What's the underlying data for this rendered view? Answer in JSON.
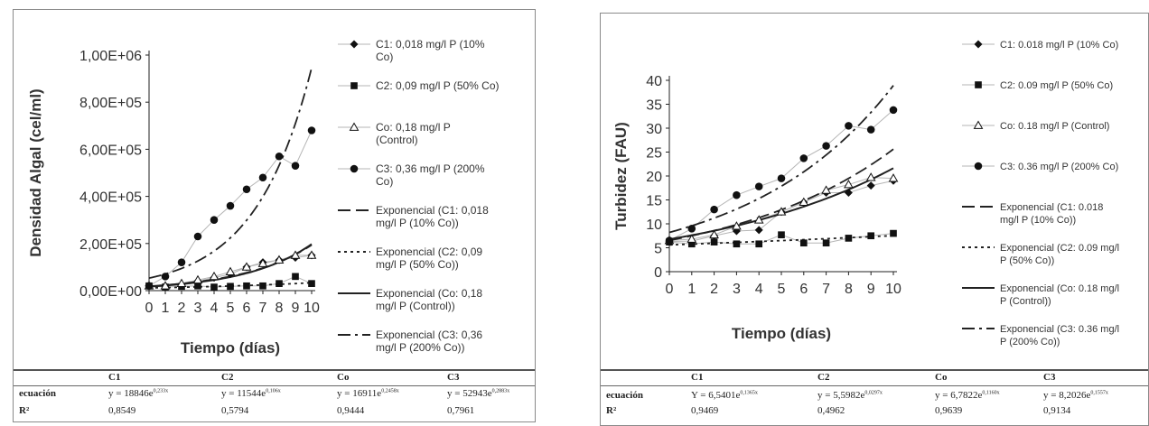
{
  "charts": [
    {
      "ylabel": "Densidad Algal (cel/ml)",
      "xlabel": "Tiempo (días)",
      "yticks": [
        "0,00E+00",
        "2,00E+05",
        "4,00E+05",
        "6,00E+05",
        "8,00E+05",
        "1,00E+06"
      ],
      "xticks": [
        "0",
        "1",
        "2",
        "3",
        "4",
        "5",
        "6",
        "7",
        "8",
        "9",
        "10"
      ],
      "legend": [
        "C1: 0,018 mg/l P (10% Co)",
        "C2: 0,09 mg/l P (50% Co)",
        "Co: 0,18 mg/l P (Control)",
        "C3: 0,36 mg/l P (200% Co)",
        "Exponencial (C1: 0,018 mg/l P (10% Co))",
        "Exponencial (C2: 0,09 mg/l P (50% Co))",
        "Exponencial (Co: 0,18 mg/l P (Control))",
        "Exponencial (C3: 0,36 mg/l P (200% Co))"
      ],
      "table": {
        "headers": [
          "C1",
          "C2",
          "Co",
          "C3"
        ],
        "row1_label": "ecuación",
        "equations": [
          {
            "base": "y = 18846e",
            "exp": "0,233x"
          },
          {
            "base": "y = 11544e",
            "exp": "0,106x"
          },
          {
            "base": "y = 16911e",
            "exp": "0,2458x"
          },
          {
            "base": "y = 52943e",
            "exp": "0,2883x"
          }
        ],
        "row2_label": "R²",
        "r2": [
          "0,8549",
          "0,5794",
          "0,9444",
          "0,7961"
        ]
      }
    },
    {
      "ylabel": "Turbidez (FAU)",
      "xlabel": "Tiempo (días)",
      "yticks": [
        "0",
        "5",
        "10",
        "15",
        "20",
        "25",
        "30",
        "35",
        "40"
      ],
      "xticks": [
        "0",
        "1",
        "2",
        "3",
        "4",
        "5",
        "6",
        "7",
        "8",
        "9",
        "10"
      ],
      "legend": [
        "C1: 0.018 mg/l P (10% Co)",
        "C2: 0.09 mg/l P (50% Co)",
        "Co: 0.18 mg/l P (Control)",
        "C3: 0.36 mg/l P (200% Co)",
        "Exponencial (C1: 0.018 mg/l P (10% Co))",
        "Exponencial (C2: 0.09 mg/l P (50% Co))",
        "Exponencial (Co: 0.18 mg/l P (Control))",
        "Exponencial (C3: 0.36 mg/l P (200% Co))"
      ],
      "table": {
        "headers": [
          "C1",
          "C2",
          "Co",
          "C3"
        ],
        "row1_label": "ecuación",
        "equations": [
          {
            "base": "Y = 6,5401e",
            "exp": "0,1365x"
          },
          {
            "base": "y = 5,5982e",
            "exp": "0,0297x"
          },
          {
            "base": "y = 6,7822e",
            "exp": "0,1160x"
          },
          {
            "base": "y = 8,2026e",
            "exp": "0,1557x"
          }
        ],
        "row2_label": "R²",
        "r2": [
          "0,9469",
          "0,4962",
          "0,9639",
          "0,9134"
        ]
      }
    }
  ],
  "chart_data": [
    {
      "type": "scatter",
      "x": [
        0,
        1,
        2,
        3,
        4,
        5,
        6,
        7,
        8,
        9,
        10
      ],
      "ylim": [
        0,
        1000000
      ],
      "xlim": [
        0,
        10
      ],
      "series": [
        {
          "name": "C1: 0,018 mg/l P (10% Co)",
          "marker": "diamond",
          "values": [
            20000,
            20000,
            25000,
            40000,
            55000,
            70000,
            100000,
            120000,
            130000,
            140000,
            150000
          ]
        },
        {
          "name": "C2: 0,09 mg/l P (50% Co)",
          "marker": "square",
          "values": [
            20000,
            15000,
            18000,
            20000,
            15000,
            18000,
            20000,
            20000,
            30000,
            60000,
            30000
          ]
        },
        {
          "name": "Co: 0,18 mg/l P (Control)",
          "marker": "triangle",
          "values": [
            20000,
            20000,
            30000,
            45000,
            60000,
            80000,
            100000,
            115000,
            130000,
            150000,
            150000
          ]
        },
        {
          "name": "C3: 0,36 mg/l P (200% Co)",
          "marker": "circle",
          "values": [
            20000,
            60000,
            120000,
            230000,
            300000,
            360000,
            430000,
            480000,
            570000,
            530000,
            680000
          ]
        }
      ],
      "trendlines": [
        {
          "name": "Exponencial (C1: 0,018 mg/l P (10% Co))",
          "a": 18846,
          "b": 0.233,
          "dash": "long"
        },
        {
          "name": "Exponencial (C2: 0,09 mg/l P (50% Co))",
          "a": 11544,
          "b": 0.106,
          "dash": "short"
        },
        {
          "name": "Exponencial (Co: 0,18 mg/l P (Control))",
          "a": 16911,
          "b": 0.2458,
          "dash": "solid"
        },
        {
          "name": "Exponencial (C3: 0,36 mg/l P (200% Co))",
          "a": 52943,
          "b": 0.2883,
          "dash": "longdot"
        }
      ]
    },
    {
      "type": "scatter",
      "x": [
        0,
        1,
        2,
        3,
        4,
        5,
        6,
        7,
        8,
        9,
        10
      ],
      "ylim": [
        0,
        40
      ],
      "xlim": [
        0,
        10
      ],
      "series": [
        {
          "name": "C1: 0.018 mg/l P (10% Co)",
          "marker": "diamond",
          "values": [
            6.3,
            6.4,
            7.5,
            8.5,
            8.7,
            12.5,
            14.5,
            16.5,
            16.5,
            18,
            19
          ]
        },
        {
          "name": "C2: 0.09 mg/l P (50% Co)",
          "marker": "square",
          "values": [
            6.2,
            5.8,
            6.2,
            5.8,
            5.8,
            7.7,
            6,
            6,
            7,
            7.5,
            8
          ]
        },
        {
          "name": "Co: 0.18 mg/l P (Control)",
          "marker": "triangle",
          "values": [
            6.5,
            6.8,
            7.7,
            9.5,
            10.8,
            12.5,
            14.5,
            17,
            18.2,
            19.7,
            19.5
          ]
        },
        {
          "name": "C3: 0.36 mg/l P (200% Co)",
          "marker": "circle",
          "values": [
            6.5,
            9,
            13,
            16,
            17.8,
            19.5,
            23.7,
            26.3,
            30.5,
            29.7,
            33.8
          ]
        }
      ],
      "trendlines": [
        {
          "name": "Exponencial (C1: 0.018 mg/l P (10% Co))",
          "a": 6.5401,
          "b": 0.1365,
          "dash": "long"
        },
        {
          "name": "Exponencial (C2: 0.09 mg/l P (50% Co))",
          "a": 5.5982,
          "b": 0.0297,
          "dash": "short"
        },
        {
          "name": "Exponencial (Co: 0.18 mg/l P (Control))",
          "a": 6.7822,
          "b": 0.116,
          "dash": "solid"
        },
        {
          "name": "Exponencial (C3: 0.36 mg/l P (200% Co))",
          "a": 8.2026,
          "b": 0.1557,
          "dash": "longdot"
        }
      ]
    }
  ]
}
